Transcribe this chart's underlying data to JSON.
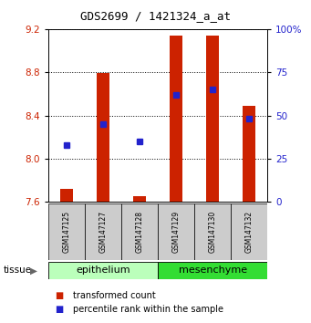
{
  "title": "GDS2699 / 1421324_a_at",
  "samples": [
    "GSM147125",
    "GSM147127",
    "GSM147128",
    "GSM147129",
    "GSM147130",
    "GSM147132"
  ],
  "transformed_counts": [
    7.72,
    8.79,
    7.65,
    9.14,
    9.14,
    8.49
  ],
  "percentile_ranks": [
    33,
    45,
    35,
    62,
    65,
    48
  ],
  "ymin": 7.6,
  "ymax": 9.2,
  "yticks": [
    7.6,
    8.0,
    8.4,
    8.8,
    9.2
  ],
  "right_yticks": [
    0,
    25,
    50,
    75,
    100
  ],
  "bar_color": "#cc2200",
  "dot_color": "#2222cc",
  "bar_bottom": 7.6,
  "groups": [
    {
      "name": "epithelium",
      "samples": [
        "GSM147125",
        "GSM147127",
        "GSM147128"
      ],
      "color": "#bbffbb"
    },
    {
      "name": "mesenchyme",
      "samples": [
        "GSM147129",
        "GSM147130",
        "GSM147132"
      ],
      "color": "#33dd33"
    }
  ],
  "sample_box_color": "#cccccc",
  "tissue_label": "tissue",
  "legend_red": "transformed count",
  "legend_blue": "percentile rank within the sample",
  "background_color": "#ffffff",
  "plot_bg": "#ffffff",
  "bar_width": 0.35,
  "title_fontsize": 9,
  "tick_fontsize": 7.5,
  "sample_fontsize": 5.5,
  "tissue_fontsize": 8,
  "legend_fontsize": 7
}
